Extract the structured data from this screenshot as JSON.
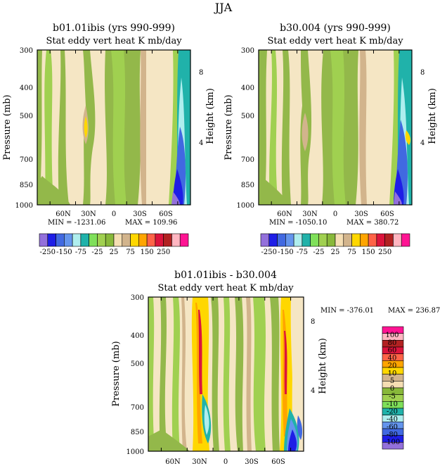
{
  "figure": {
    "title": "JJA"
  },
  "colors": {
    "top_palette": [
      "#9370db",
      "#1e1ee6",
      "#4169e1",
      "#6495ed",
      "#afeeee",
      "#20b2aa",
      "#7fe05a",
      "#a0d050",
      "#88b83a",
      "#f5deb3",
      "#d2b48c",
      "#ffd700",
      "#ffa500",
      "#ff6347",
      "#dc143c",
      "#b22222",
      "#ffb6c1",
      "#ff1493"
    ],
    "diff_palette": [
      "#9370db",
      "#1e1ee6",
      "#4169e1",
      "#6495ed",
      "#afeeee",
      "#20b2aa",
      "#7fe05a",
      "#a0d050",
      "#88b83a",
      "#f5deb3",
      "#d2b48c",
      "#ffd700",
      "#ffa500",
      "#ff6347",
      "#dc143c",
      "#b22222",
      "#ffb6c1",
      "#ff1493"
    ],
    "background_field": "#f5e6c4",
    "green_field": "#93b84a"
  },
  "top_labelbar": {
    "labels": [
      "-250",
      "-150",
      "-75",
      "-25",
      "25",
      "75",
      "150",
      "250"
    ]
  },
  "diff_labelbar": {
    "labels": [
      "100",
      "80",
      "60",
      "40",
      "20",
      "10",
      "5",
      "0",
      "-5",
      "-10",
      "-20",
      "-40",
      "-60",
      "-80",
      "-100"
    ]
  },
  "chart_data": [
    {
      "type": "heatmap",
      "title": "b01.01ibis (yrs 990-999)",
      "subtitle": "Stat eddy vert heat   K mb/day",
      "ylabel": "Pressure (mb)",
      "y2label": "Height (km)",
      "x_ticks": [
        "60N",
        "30N",
        "0",
        "30S",
        "60S"
      ],
      "y_ticks": [
        "300",
        "400",
        "500",
        "700",
        "850",
        "1000"
      ],
      "y2_ticks": [
        "8",
        "4"
      ],
      "ylim": [
        1000,
        300
      ],
      "min_label": "MIN = -1231.06",
      "max_label": "MAX = 109.96",
      "contour_levels": [
        -250,
        -150,
        -75,
        -25,
        25,
        75,
        150,
        250
      ]
    },
    {
      "type": "heatmap",
      "title": "b30.004 (yrs 990-999)",
      "subtitle": "Stat eddy vert heat   K mb/day",
      "ylabel": "Pressure (mb)",
      "y2label": "Height (km)",
      "x_ticks": [
        "60N",
        "30N",
        "0",
        "30S",
        "60S"
      ],
      "y_ticks": [
        "300",
        "400",
        "500",
        "700",
        "850",
        "1000"
      ],
      "y2_ticks": [
        "8",
        "4"
      ],
      "ylim": [
        1000,
        300
      ],
      "min_label": "MIN = -1050.10",
      "max_label": "MAX = 380.72",
      "contour_levels": [
        -250,
        -150,
        -75,
        -25,
        25,
        75,
        150,
        250
      ]
    },
    {
      "type": "heatmap",
      "title": "b01.01ibis - b30.004",
      "subtitle": "Stat eddy vert heat   K mb/day",
      "ylabel": "Pressure (mb)",
      "y2label": "Height (km)",
      "x_ticks": [
        "60N",
        "30N",
        "0",
        "30S",
        "60S"
      ],
      "y_ticks": [
        "300",
        "400",
        "500",
        "700",
        "850",
        "1000"
      ],
      "y2_ticks": [
        "8",
        "4"
      ],
      "ylim": [
        1000,
        300
      ],
      "min_label": "MIN = -376.01",
      "max_label": "MAX = 236.87",
      "contour_levels": [
        -100,
        -80,
        -60,
        -40,
        -20,
        -10,
        -5,
        0,
        5,
        10,
        20,
        40,
        60,
        80,
        100
      ]
    }
  ]
}
